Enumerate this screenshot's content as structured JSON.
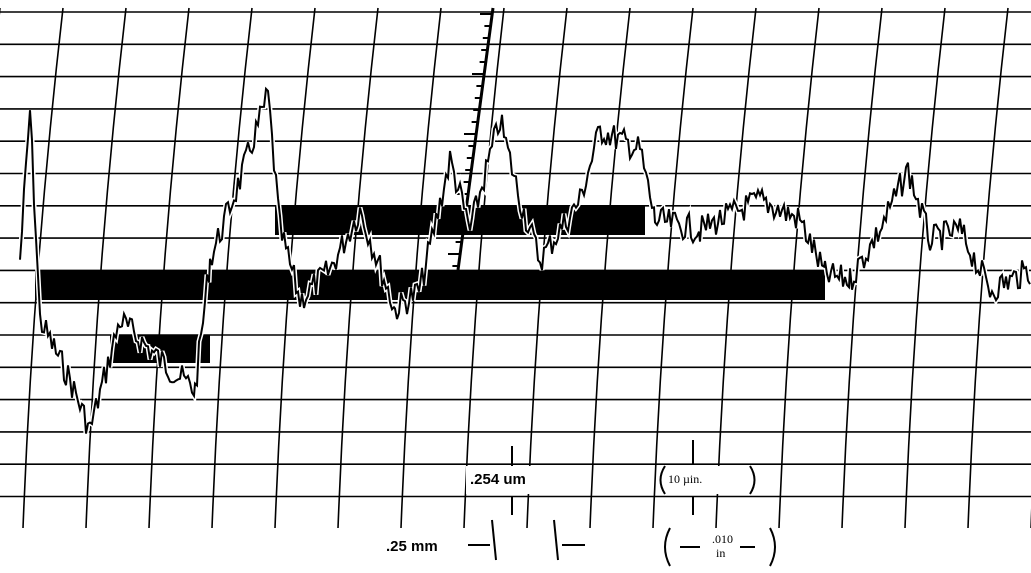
{
  "annotations": {
    "vertical_metric": ".254 um",
    "vertical_imperial": "10 µin.",
    "horizontal_metric": ".25 mm",
    "horizontal_imperial_top": ".010",
    "horizontal_imperial_bottom": "in"
  }
}
